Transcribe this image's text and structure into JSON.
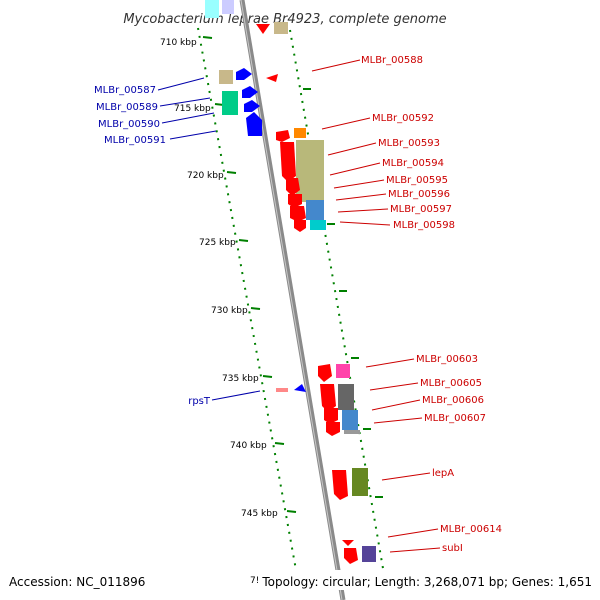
{
  "title": "Mycobacterium leprae Br4923, complete genome",
  "scale_ticks": [
    "710 kbp",
    "715 kbp",
    "720 kbp",
    "725 kbp",
    "730 kbp",
    "735 kbp",
    "740 kbp",
    "745 kbp",
    "7!"
  ],
  "genes_left": [
    "MLBr_00587",
    "MLBr_00589",
    "MLBr_00590",
    "MLBr_00591",
    "rpsT"
  ],
  "genes_right": [
    "MLBr_00588",
    "MLBr_00592",
    "MLBr_00593",
    "MLBr_00594",
    "MLBr_00595",
    "MLBr_00596",
    "MLBr_00597",
    "MLBr_00598",
    "MLBr_00603",
    "MLBr_00605",
    "MLBr_00606",
    "MLBr_00607",
    "lepA",
    "MLBr_00614",
    "subI"
  ],
  "footer": {
    "accession": "Accession: NC_011896",
    "summary": "Topology: circular; Length: 3,268,071 bp; Genes: 1,651"
  },
  "colors": {
    "forward_label": "#cc0000",
    "reverse_label": "#0000aa",
    "forward_gene": "#ff0000",
    "reverse_gene": "#0000ff",
    "tick": "#008000",
    "backbone": "#999999"
  }
}
